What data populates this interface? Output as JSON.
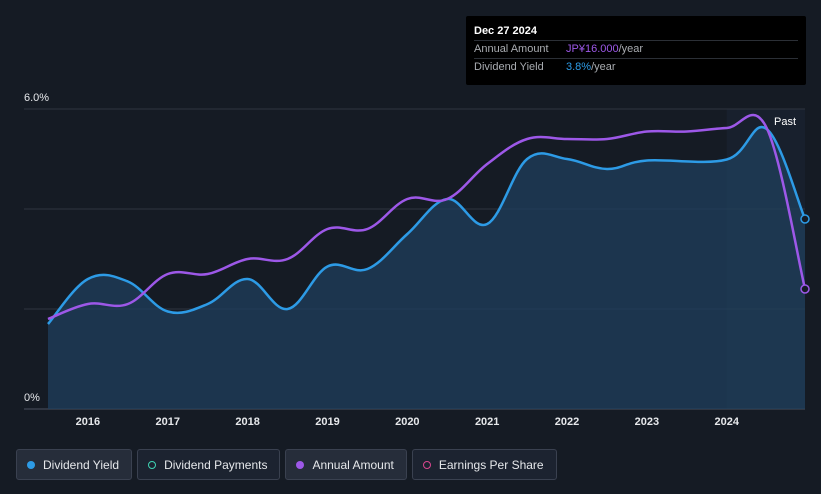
{
  "tooltip": {
    "date": "Dec 27 2024",
    "amount_label": "Annual Amount",
    "amount_value": "JP¥16.000",
    "amount_unit": "/year",
    "yield_label": "Dividend Yield",
    "yield_value": "3.8%",
    "yield_unit": "/year"
  },
  "past_label": "Past",
  "legend": [
    {
      "label": "Dividend Yield",
      "color": "#2d9be6",
      "style": "filled"
    },
    {
      "label": "Dividend Payments",
      "color": "#3fd4b4",
      "style": "outline"
    },
    {
      "label": "Annual Amount",
      "color": "#9d58e8",
      "style": "filled"
    },
    {
      "label": "Earnings Per Share",
      "color": "#d9468f",
      "style": "outline"
    }
  ],
  "colors": {
    "yield": "#2d9be6",
    "amount": "#9d58e8",
    "grid": "#2e3540",
    "axis_text": "#e6e8eb"
  },
  "chart_data": {
    "type": "line",
    "y_ticks": [
      "0%",
      "6.0%"
    ],
    "ylim": [
      0,
      6.0
    ],
    "xlim": [
      2015.5,
      2024.98
    ],
    "x_ticks": [
      "2016",
      "2017",
      "2018",
      "2019",
      "2020",
      "2021",
      "2022",
      "2023",
      "2024"
    ],
    "grid": true,
    "series": [
      {
        "name": "Dividend Yield",
        "points": [
          [
            2015.5,
            1.7
          ],
          [
            2016.0,
            2.6
          ],
          [
            2016.5,
            2.55
          ],
          [
            2017.0,
            1.95
          ],
          [
            2017.5,
            2.1
          ],
          [
            2018.0,
            2.6
          ],
          [
            2018.5,
            2.0
          ],
          [
            2019.0,
            2.85
          ],
          [
            2019.5,
            2.8
          ],
          [
            2020.0,
            3.5
          ],
          [
            2020.5,
            4.2
          ],
          [
            2021.0,
            3.7
          ],
          [
            2021.5,
            5.0
          ],
          [
            2022.0,
            5.0
          ],
          [
            2022.5,
            4.8
          ],
          [
            2023.0,
            4.97
          ],
          [
            2024.0,
            4.99
          ],
          [
            2024.5,
            5.6
          ],
          [
            2024.98,
            3.8
          ]
        ]
      },
      {
        "name": "Annual Amount",
        "points": [
          [
            2015.5,
            1.8
          ],
          [
            2016.0,
            2.1
          ],
          [
            2016.5,
            2.1
          ],
          [
            2017.0,
            2.7
          ],
          [
            2017.5,
            2.7
          ],
          [
            2018.0,
            3.0
          ],
          [
            2018.5,
            3.0
          ],
          [
            2019.0,
            3.6
          ],
          [
            2019.5,
            3.6
          ],
          [
            2020.0,
            4.2
          ],
          [
            2020.5,
            4.2
          ],
          [
            2021.0,
            4.9
          ],
          [
            2021.5,
            5.4
          ],
          [
            2022.0,
            5.4
          ],
          [
            2022.5,
            5.4
          ],
          [
            2023.0,
            5.55
          ],
          [
            2023.5,
            5.55
          ],
          [
            2024.0,
            5.62
          ],
          [
            2024.5,
            5.62
          ],
          [
            2024.98,
            2.4
          ]
        ]
      }
    ]
  }
}
